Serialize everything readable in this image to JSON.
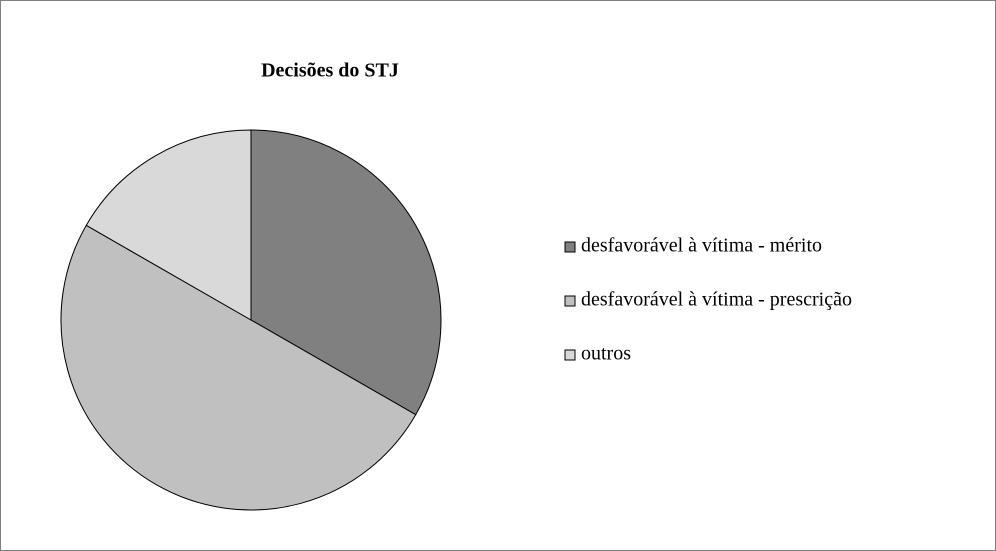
{
  "chart_data": {
    "type": "pie",
    "title": "Decisões do STJ",
    "categories": [
      "desfavorável à vítima - mérito",
      "desfavorável à vítima - prescrição",
      "outros"
    ],
    "values": [
      33.3,
      50,
      16.7
    ],
    "colors": [
      "#808080",
      "#c0c0c0",
      "#d9d9d9"
    ],
    "legend": "right"
  }
}
